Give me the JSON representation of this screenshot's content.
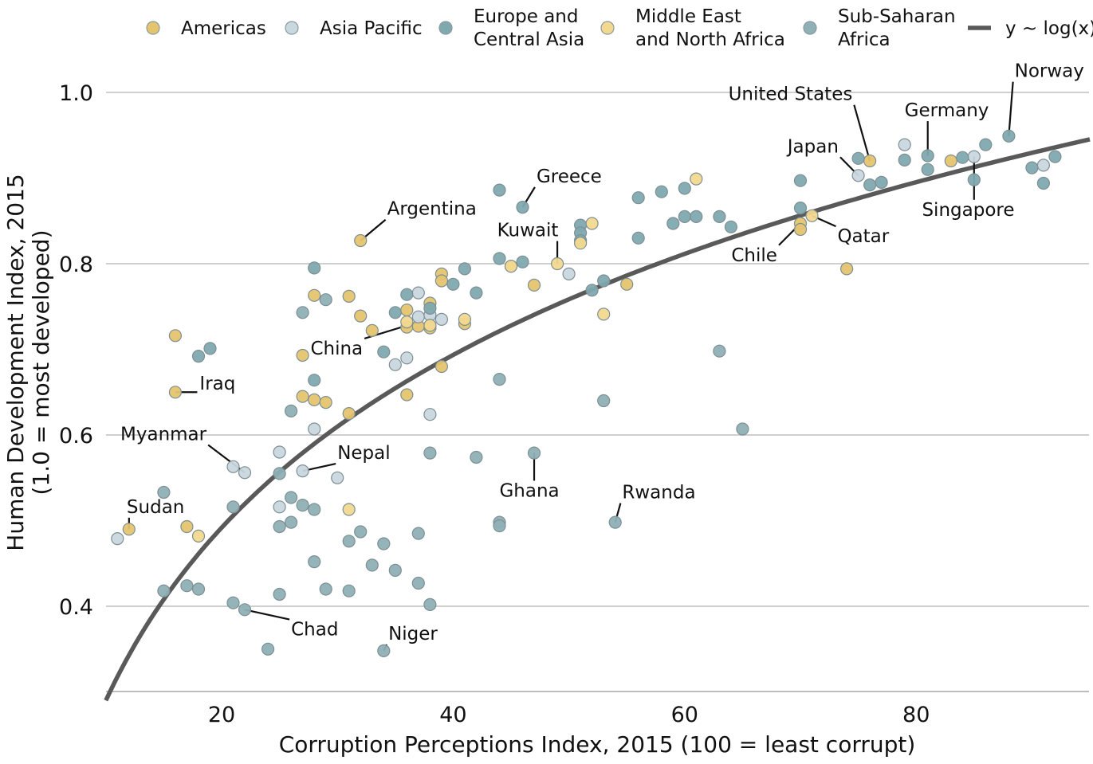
{
  "chart_data": {
    "type": "scatter",
    "xlabel": "Corruption Perceptions Index, 2015 (100 = least corrupt)",
    "ylabel": [
      "Human Development Index, 2015",
      "(1.0 = most developed)"
    ],
    "xlim": [
      10,
      95
    ],
    "ylim": [
      0.3,
      1.0
    ],
    "x_ticks": [
      20,
      40,
      60,
      80
    ],
    "y_ticks": [
      0.4,
      0.6,
      0.8,
      1.0
    ],
    "x_tick_labels": [
      "20",
      "40",
      "60",
      "80"
    ],
    "y_tick_labels": [
      "0.4",
      "0.6",
      "0.8",
      "1.0"
    ],
    "grid": "horizontal",
    "legend_position": "top",
    "trend": {
      "label": "y ~ log(x)",
      "model": "log",
      "a": -0.38,
      "b": 0.291,
      "color": "#595959"
    },
    "regions": [
      {
        "key": "americas",
        "name": [
          "Americas"
        ],
        "color": "#E5C46F"
      },
      {
        "key": "asia",
        "name": [
          "Asia Pacific"
        ],
        "color": "#C9D7DE"
      },
      {
        "key": "europe",
        "name": [
          "Europe and",
          "Central Asia"
        ],
        "color": "#7FA9AF"
      },
      {
        "key": "mena",
        "name": [
          "Middle East",
          "and North Africa"
        ],
        "color": "#F2D98F"
      },
      {
        "key": "ssa",
        "name": [
          "Sub-Saharan",
          "Africa"
        ],
        "color": "#8FB0B6"
      }
    ],
    "series": [
      {
        "region": "americas",
        "points": [
          [
            12,
            0.49
          ],
          [
            16,
            0.65
          ],
          [
            16,
            0.716
          ],
          [
            17,
            0.493
          ],
          [
            27,
            0.693
          ],
          [
            27,
            0.645
          ],
          [
            28,
            0.641
          ],
          [
            28,
            0.763
          ],
          [
            29,
            0.638
          ],
          [
            31,
            0.762
          ],
          [
            31,
            0.625
          ],
          [
            32,
            0.827
          ],
          [
            32,
            0.739
          ],
          [
            33,
            0.722
          ],
          [
            36,
            0.647
          ],
          [
            36,
            0.726
          ],
          [
            36,
            0.746
          ],
          [
            37,
            0.727
          ],
          [
            38,
            0.725
          ],
          [
            38,
            0.754
          ],
          [
            39,
            0.788
          ],
          [
            39,
            0.78
          ],
          [
            39,
            0.68
          ],
          [
            41,
            0.73
          ],
          [
            45,
            0.797
          ],
          [
            47,
            0.775
          ],
          [
            55,
            0.776
          ],
          [
            70,
            0.847
          ],
          [
            70,
            0.84
          ],
          [
            74,
            0.794
          ],
          [
            76,
            0.92
          ],
          [
            83,
            0.92
          ]
        ]
      },
      {
        "region": "asia",
        "points": [
          [
            11,
            0.479
          ],
          [
            21,
            0.563
          ],
          [
            22,
            0.556
          ],
          [
            25,
            0.58
          ],
          [
            25,
            0.516
          ],
          [
            27,
            0.558
          ],
          [
            28,
            0.607
          ],
          [
            30,
            0.55
          ],
          [
            35,
            0.682
          ],
          [
            36,
            0.69
          ],
          [
            37,
            0.766
          ],
          [
            37,
            0.738
          ],
          [
            38,
            0.74
          ],
          [
            38,
            0.624
          ],
          [
            39,
            0.735
          ],
          [
            50,
            0.788
          ],
          [
            75,
            0.903
          ],
          [
            79,
            0.939
          ],
          [
            85,
            0.925
          ],
          [
            91,
            0.915
          ]
        ]
      },
      {
        "region": "europe",
        "points": [
          [
            18,
            0.692
          ],
          [
            19,
            0.701
          ],
          [
            28,
            0.664
          ],
          [
            28,
            0.795
          ],
          [
            34,
            0.697
          ],
          [
            35,
            0.743
          ],
          [
            36,
            0.764
          ],
          [
            38,
            0.748
          ],
          [
            40,
            0.776
          ],
          [
            41,
            0.794
          ],
          [
            42,
            0.766
          ],
          [
            44,
            0.806
          ],
          [
            44,
            0.886
          ],
          [
            46,
            0.866
          ],
          [
            46,
            0.802
          ],
          [
            51,
            0.845
          ],
          [
            51,
            0.836
          ],
          [
            51,
            0.827
          ],
          [
            52,
            0.769
          ],
          [
            53,
            0.78
          ],
          [
            56,
            0.877
          ],
          [
            56,
            0.83
          ],
          [
            58,
            0.884
          ],
          [
            59,
            0.847
          ],
          [
            60,
            0.855
          ],
          [
            60,
            0.888
          ],
          [
            61,
            0.855
          ],
          [
            63,
            0.855
          ],
          [
            64,
            0.843
          ],
          [
            70,
            0.897
          ],
          [
            70,
            0.865
          ],
          [
            75,
            0.923
          ],
          [
            76,
            0.892
          ],
          [
            77,
            0.895
          ],
          [
            79,
            0.921
          ],
          [
            81,
            0.926
          ],
          [
            81,
            0.91
          ],
          [
            84,
            0.924
          ],
          [
            85,
            0.898
          ],
          [
            86,
            0.939
          ],
          [
            88,
            0.949
          ],
          [
            90,
            0.912
          ],
          [
            91,
            0.894
          ],
          [
            92,
            0.925
          ]
        ]
      },
      {
        "region": "mena",
        "points": [
          [
            18,
            0.482
          ],
          [
            31,
            0.513
          ],
          [
            36,
            0.732
          ],
          [
            38,
            0.728
          ],
          [
            41,
            0.735
          ],
          [
            45,
            0.797
          ],
          [
            49,
            0.8
          ],
          [
            51,
            0.824
          ],
          [
            52,
            0.847
          ],
          [
            53,
            0.741
          ],
          [
            61,
            0.899
          ],
          [
            71,
            0.856
          ]
        ]
      },
      {
        "region": "ssa",
        "points": [
          [
            15,
            0.533
          ],
          [
            15,
            0.418
          ],
          [
            17,
            0.424
          ],
          [
            18,
            0.42
          ],
          [
            21,
            0.516
          ],
          [
            21,
            0.404
          ],
          [
            22,
            0.396
          ],
          [
            24,
            0.35
          ],
          [
            25,
            0.555
          ],
          [
            25,
            0.493
          ],
          [
            25,
            0.414
          ],
          [
            26,
            0.628
          ],
          [
            26,
            0.527
          ],
          [
            26,
            0.498
          ],
          [
            27,
            0.743
          ],
          [
            27,
            0.518
          ],
          [
            28,
            0.513
          ],
          [
            28,
            0.452
          ],
          [
            29,
            0.758
          ],
          [
            29,
            0.42
          ],
          [
            31,
            0.476
          ],
          [
            31,
            0.418
          ],
          [
            32,
            0.487
          ],
          [
            33,
            0.448
          ],
          [
            34,
            0.473
          ],
          [
            34,
            0.348
          ],
          [
            35,
            0.442
          ],
          [
            37,
            0.485
          ],
          [
            37,
            0.427
          ],
          [
            38,
            0.579
          ],
          [
            38,
            0.402
          ],
          [
            42,
            0.574
          ],
          [
            44,
            0.665
          ],
          [
            44,
            0.498
          ],
          [
            44,
            0.494
          ],
          [
            47,
            0.579
          ],
          [
            53,
            0.64
          ],
          [
            54,
            0.498
          ],
          [
            63,
            0.698
          ],
          [
            65,
            0.607
          ]
        ]
      }
    ],
    "annotations": [
      {
        "label": "Norway",
        "point": [
          88,
          0.949
        ],
        "text_x": 88.5,
        "text_y": 1.018,
        "anchor": "start"
      },
      {
        "label": "United States",
        "point": [
          76,
          0.92
        ],
        "text_x": 74.5,
        "text_y": 0.991,
        "anchor": "end"
      },
      {
        "label": "Germany",
        "point": [
          81,
          0.926
        ],
        "text_x": 79,
        "text_y": 0.972,
        "anchor": "start"
      },
      {
        "label": "Japan",
        "point": [
          75,
          0.903
        ],
        "text_x": 73.3,
        "text_y": 0.93,
        "anchor": "end"
      },
      {
        "label": "Singapore",
        "point": [
          85,
          0.925
        ],
        "text_x": 80.5,
        "text_y": 0.856,
        "anchor": "start"
      },
      {
        "label": "Qatar",
        "point": [
          71,
          0.856
        ],
        "text_x": 73.2,
        "text_y": 0.825,
        "anchor": "start"
      },
      {
        "label": "Chile",
        "point": [
          70,
          0.847
        ],
        "text_x": 68,
        "text_y": 0.803,
        "anchor": "end"
      },
      {
        "label": "Greece",
        "point": [
          46,
          0.866
        ],
        "text_x": 47.2,
        "text_y": 0.895,
        "anchor": "start"
      },
      {
        "label": "Argentina",
        "point": [
          32,
          0.827
        ],
        "text_x": 34.3,
        "text_y": 0.857,
        "anchor": "start"
      },
      {
        "label": "Kuwait",
        "point": [
          49,
          0.8
        ],
        "text_x": 43.8,
        "text_y": 0.832,
        "anchor": "start"
      },
      {
        "label": "China",
        "point": [
          37,
          0.732
        ],
        "text_x": 32.2,
        "text_y": 0.694,
        "anchor": "end"
      },
      {
        "label": "Iraq",
        "point": [
          16,
          0.65
        ],
        "text_x": 18.1,
        "text_y": 0.653,
        "anchor": "start"
      },
      {
        "label": "Myanmar",
        "point": [
          22,
          0.556
        ],
        "text_x": 18.7,
        "text_y": 0.594,
        "anchor": "end"
      },
      {
        "label": "Nepal",
        "point": [
          27,
          0.558
        ],
        "text_x": 30,
        "text_y": 0.572,
        "anchor": "start"
      },
      {
        "label": "Sudan",
        "point": [
          12,
          0.49
        ],
        "text_x": 11.8,
        "text_y": 0.509,
        "anchor": "start"
      },
      {
        "label": "Ghana",
        "point": [
          47,
          0.579
        ],
        "text_x": 44,
        "text_y": 0.528,
        "anchor": "start"
      },
      {
        "label": "Rwanda",
        "point": [
          54,
          0.498
        ],
        "text_x": 54.6,
        "text_y": 0.526,
        "anchor": "start"
      },
      {
        "label": "Chad",
        "point": [
          22,
          0.396
        ],
        "text_x": 26,
        "text_y": 0.366,
        "anchor": "start"
      },
      {
        "label": "Niger",
        "point": [
          34,
          0.348
        ],
        "text_x": 34.4,
        "text_y": 0.361,
        "anchor": "start"
      }
    ]
  }
}
